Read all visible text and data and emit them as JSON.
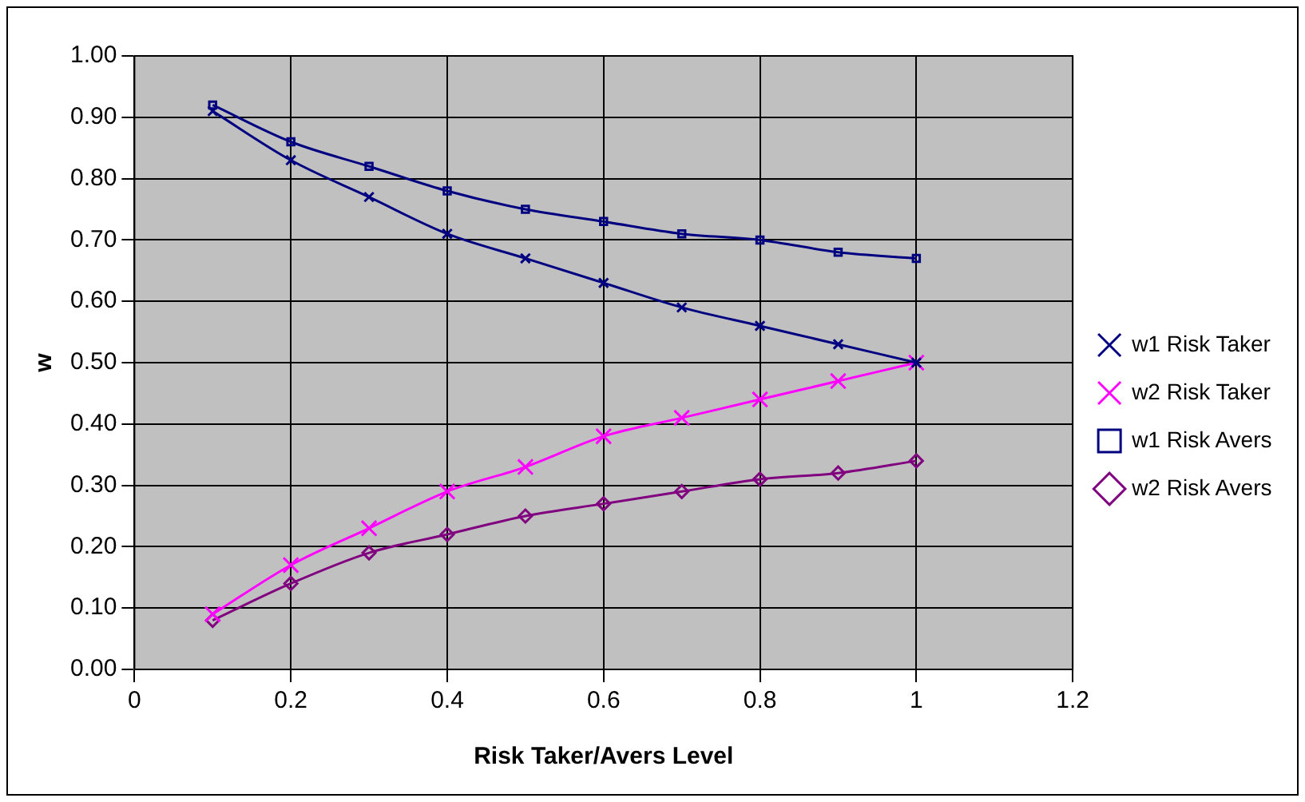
{
  "chart_data": {
    "type": "line",
    "xlabel": "Risk Taker/Avers Level",
    "ylabel": "w",
    "x": [
      0.1,
      0.2,
      0.3,
      0.4,
      0.5,
      0.6,
      0.7,
      0.8,
      0.9,
      1
    ],
    "xlim": [
      0,
      1.2
    ],
    "xticks": [
      0,
      0.2,
      0.4,
      0.6,
      0.8,
      1,
      1.2
    ],
    "ylim": [
      0,
      1
    ],
    "yticks": [
      {
        "value": 0,
        "label": "0.00"
      },
      {
        "value": 0.1,
        "label": "0.10"
      },
      {
        "value": 0.2,
        "label": "0.20"
      },
      {
        "value": 0.3,
        "label": "0.30"
      },
      {
        "value": 0.4,
        "label": "0.40"
      },
      {
        "value": 0.5,
        "label": "0.50"
      },
      {
        "value": 0.6,
        "label": "0.60"
      },
      {
        "value": 0.7,
        "label": "0.70"
      },
      {
        "value": 0.8,
        "label": "0.80"
      },
      {
        "value": 0.9,
        "label": "0.90"
      },
      {
        "value": 1,
        "label": "1.00"
      }
    ],
    "grid": true,
    "legend": "right",
    "line_style": "solid",
    "series": [
      {
        "name": "w1 Risk Taker",
        "color": "#000080",
        "marker": "cross",
        "values": [
          0.91,
          0.83,
          0.77,
          0.71,
          0.67,
          0.63,
          0.59,
          0.56,
          0.53,
          0.5
        ]
      },
      {
        "name": "w2 Risk Taker",
        "color": "#ff00ff",
        "marker": "cross",
        "values": [
          0.09,
          0.17,
          0.23,
          0.29,
          0.33,
          0.38,
          0.41,
          0.44,
          0.47,
          0.5
        ]
      },
      {
        "name": "w1 Risk Avers",
        "color": "#000080",
        "marker": "square",
        "values": [
          0.92,
          0.86,
          0.82,
          0.78,
          0.75,
          0.73,
          0.71,
          0.7,
          0.68,
          0.67
        ]
      },
      {
        "name": "w2 Risk Avers",
        "color": "#800080",
        "marker": "diamond",
        "values": [
          0.08,
          0.14,
          0.19,
          0.22,
          0.25,
          0.27,
          0.29,
          0.31,
          0.32,
          0.34
        ]
      }
    ]
  }
}
